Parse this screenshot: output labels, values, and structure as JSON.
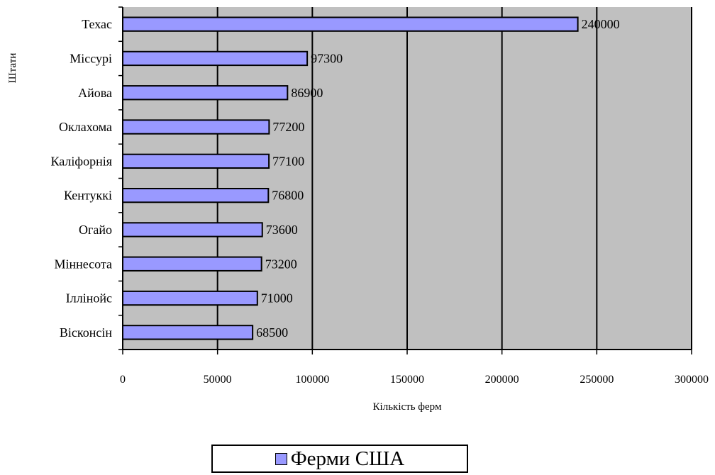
{
  "chart_data": {
    "type": "bar",
    "orientation": "horizontal",
    "categories": [
      "Техас",
      "Міссурі",
      "Айова",
      "Оклахома",
      "Каліфорнія",
      "Кентуккі",
      "Огайо",
      "Міннесота",
      "Іллінойс",
      "Вісконсін"
    ],
    "series": [
      {
        "name": "Ферми США",
        "values": [
          240000,
          97300,
          86900,
          77200,
          77100,
          76800,
          73600,
          73200,
          71000,
          68500
        ],
        "color": "#9999ff"
      }
    ],
    "xlabel": "Кількість ферм",
    "ylabel": "Штати",
    "xlim": [
      0,
      300000
    ],
    "xticks": [
      0,
      50000,
      100000,
      150000,
      200000,
      250000,
      300000
    ],
    "xtick_labels": [
      "0",
      "50000",
      "100000",
      "150000",
      "200000",
      "250000",
      "300000"
    ],
    "data_labels": [
      "240000",
      "97300",
      "86900",
      "77200",
      "77100",
      "76800",
      "73600",
      "73200",
      "71000",
      "68500"
    ],
    "grid": "vertical",
    "plot_background": "#c0c0c0",
    "legend": "bottom"
  }
}
